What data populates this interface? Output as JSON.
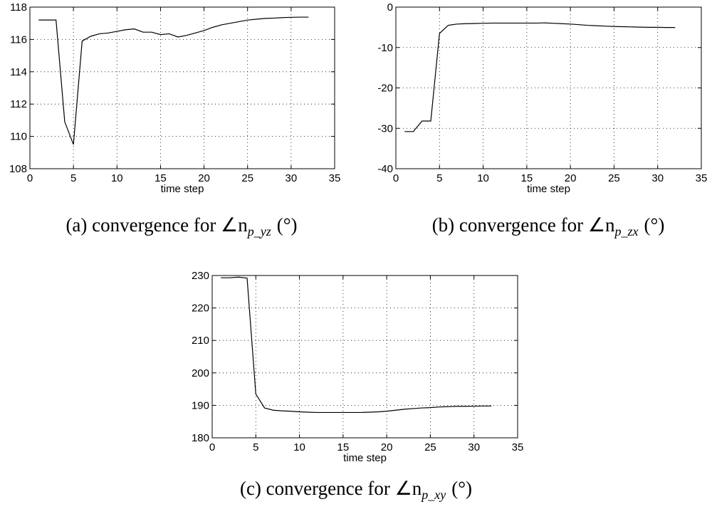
{
  "chart_data": [
    {
      "type": "line",
      "x_label": "time step",
      "caption": "(a) convergence for ∠n",
      "caption_sub": "p_yz",
      "caption_end": "(°)",
      "x": [
        1,
        2,
        3,
        4,
        5,
        6,
        7,
        8,
        9,
        10,
        11,
        12,
        13,
        14,
        15,
        16,
        17,
        18,
        19,
        20,
        21,
        22,
        23,
        24,
        25,
        26,
        27,
        28,
        29,
        30,
        31,
        32
      ],
      "values": [
        117.2,
        117.2,
        117.2,
        110.9,
        109.5,
        115.9,
        116.2,
        116.35,
        116.4,
        116.5,
        116.6,
        116.65,
        116.45,
        116.45,
        116.3,
        116.35,
        116.15,
        116.25,
        116.4,
        116.55,
        116.75,
        116.9,
        117.0,
        117.1,
        117.2,
        117.25,
        117.3,
        117.32,
        117.35,
        117.37,
        117.38,
        117.38
      ],
      "color": "#000000",
      "xlim": [
        0,
        35
      ],
      "xticks": [
        0,
        5,
        10,
        15,
        20,
        25,
        30,
        35
      ],
      "ylim": [
        108,
        118
      ],
      "yticks": [
        108,
        110,
        112,
        114,
        116,
        118
      ],
      "grid": true
    },
    {
      "type": "line",
      "x_label": "time step",
      "caption": "(b) convergence for ∠n",
      "caption_sub": "p_zx",
      "caption_end": "(°)",
      "x": [
        1,
        2,
        3,
        4,
        5,
        6,
        7,
        8,
        9,
        10,
        11,
        12,
        13,
        14,
        15,
        16,
        17,
        18,
        19,
        20,
        21,
        22,
        23,
        24,
        25,
        26,
        27,
        28,
        29,
        30,
        31,
        32
      ],
      "values": [
        -30.8,
        -30.8,
        -28.2,
        -28.2,
        -6.5,
        -4.5,
        -4.2,
        -4.1,
        -4.05,
        -4.0,
        -3.95,
        -3.95,
        -3.95,
        -3.95,
        -3.95,
        -3.95,
        -3.9,
        -4.0,
        -4.1,
        -4.2,
        -4.35,
        -4.5,
        -4.6,
        -4.7,
        -4.8,
        -4.85,
        -4.9,
        -4.95,
        -5.0,
        -5.0,
        -5.05,
        -5.05
      ],
      "color": "#000000",
      "xlim": [
        0,
        35
      ],
      "xticks": [
        0,
        5,
        10,
        15,
        20,
        25,
        30,
        35
      ],
      "ylim": [
        -40,
        0
      ],
      "yticks": [
        -40,
        -30,
        -20,
        -10,
        0
      ],
      "grid": true
    },
    {
      "type": "line",
      "x_label": "time step",
      "caption": "(c) convergence for ∠n",
      "caption_sub": "p_xy",
      "caption_end": "(°)",
      "x": [
        1,
        2,
        3,
        4,
        5,
        6,
        7,
        8,
        9,
        10,
        11,
        12,
        13,
        14,
        15,
        16,
        17,
        18,
        19,
        20,
        21,
        22,
        23,
        24,
        25,
        26,
        27,
        28,
        29,
        30,
        31,
        32
      ],
      "values": [
        229.3,
        229.3,
        229.5,
        229.2,
        193.5,
        189.2,
        188.5,
        188.3,
        188.2,
        188.0,
        187.9,
        187.8,
        187.8,
        187.8,
        187.8,
        187.8,
        187.8,
        187.9,
        188.0,
        188.2,
        188.5,
        188.8,
        189.0,
        189.2,
        189.3,
        189.5,
        189.6,
        189.7,
        189.7,
        189.75,
        189.8,
        189.8
      ],
      "color": "#000000",
      "xlim": [
        0,
        35
      ],
      "xticks": [
        0,
        5,
        10,
        15,
        20,
        25,
        30,
        35
      ],
      "ylim": [
        180,
        230
      ],
      "yticks": [
        180,
        190,
        200,
        210,
        220,
        230
      ],
      "grid": true
    }
  ]
}
